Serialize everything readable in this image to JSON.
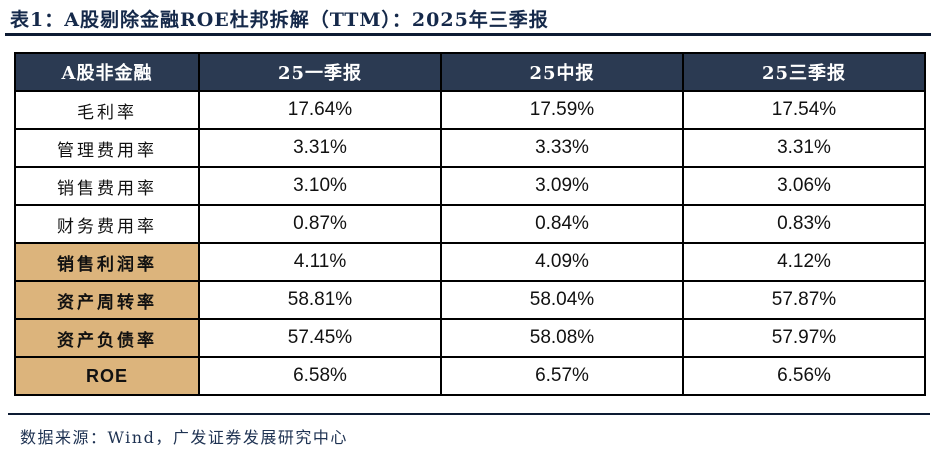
{
  "caption": "表1：A股剔除金融ROE杜邦拆解（TTM）：2025年三季报",
  "chart_data": {
    "type": "table",
    "title": "A股剔除金融ROE杜邦拆解（TTM）：2025年三季报",
    "columns": [
      "A股非金融",
      "25一季报",
      "25中报",
      "25三季报"
    ],
    "rows": [
      {
        "label": "毛利率",
        "values": [
          "17.64%",
          "17.59%",
          "17.54%"
        ],
        "highlight": false
      },
      {
        "label": "管理费用率",
        "values": [
          "3.31%",
          "3.33%",
          "3.31%"
        ],
        "highlight": false
      },
      {
        "label": "销售费用率",
        "values": [
          "3.10%",
          "3.09%",
          "3.06%"
        ],
        "highlight": false
      },
      {
        "label": "财务费用率",
        "values": [
          "0.87%",
          "0.84%",
          "0.83%"
        ],
        "highlight": false
      },
      {
        "label": "销售利润率",
        "values": [
          "4.11%",
          "4.09%",
          "4.12%"
        ],
        "highlight": true
      },
      {
        "label": "资产周转率",
        "values": [
          "58.81%",
          "58.04%",
          "57.87%"
        ],
        "highlight": true
      },
      {
        "label": "资产负债率",
        "values": [
          "57.45%",
          "58.08%",
          "57.97%"
        ],
        "highlight": true
      },
      {
        "label": "ROE",
        "values": [
          "6.58%",
          "6.57%",
          "6.56%"
        ],
        "highlight": true
      }
    ],
    "layout_hints": {
      "header_style": "dark navy bar with white bold text",
      "highlight_style": "tan label cells with bold text on bottom four rows",
      "grid": "black 2px borders, all cells center-aligned"
    }
  },
  "footer": {
    "source": "数据来源：Wind，广发证券发展研究中心"
  },
  "colors": {
    "header_bg": "#2b3a52",
    "header_text": "#ffffff",
    "highlight_bg": "#dcb47c",
    "title_text": "#15294a",
    "footer_text": "#1e3252",
    "rule": "#0d1b33",
    "border": "#000000",
    "value_text": "#111111"
  }
}
